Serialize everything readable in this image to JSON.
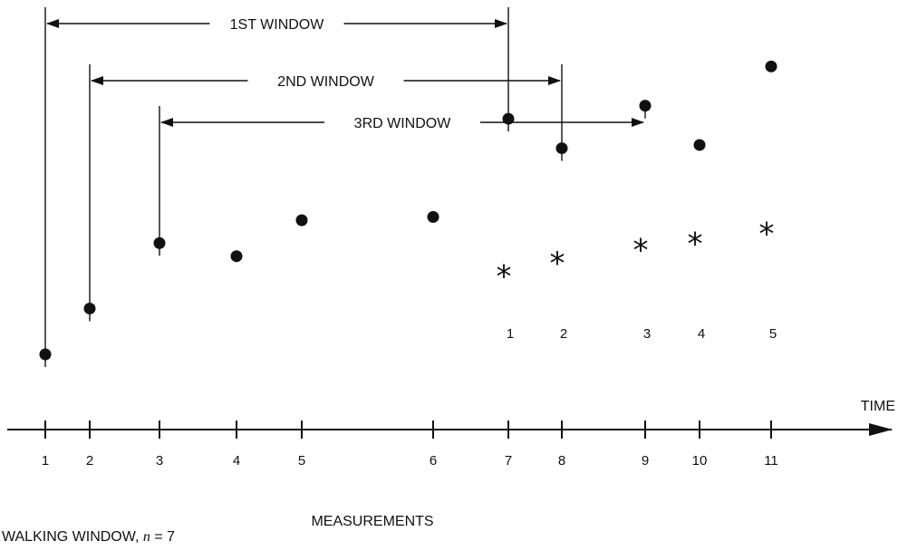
{
  "windows": [
    {
      "label": "1ST WINDOW",
      "start": 1,
      "end": 7
    },
    {
      "label": "2ND WINDOW",
      "start": 2,
      "end": 8
    },
    {
      "label": "3RD WINDOW",
      "start": 3,
      "end": 9
    }
  ],
  "time_axis": {
    "label": "TIME",
    "ticks": [
      "1",
      "2",
      "3",
      "4",
      "5",
      "6",
      "7",
      "8",
      "9",
      "10",
      "11"
    ]
  },
  "measurements": [
    {
      "t": 1,
      "level": 0.0
    },
    {
      "t": 2,
      "level": 0.14
    },
    {
      "t": 3,
      "level": 0.34
    },
    {
      "t": 4,
      "level": 0.3
    },
    {
      "t": 5,
      "level": 0.41
    },
    {
      "t": 6,
      "level": 0.42
    },
    {
      "t": 7,
      "level": 0.72
    },
    {
      "t": 8,
      "level": 0.63
    },
    {
      "t": 9,
      "level": 0.76
    },
    {
      "t": 10,
      "level": 0.64
    },
    {
      "t": 11,
      "level": 0.88
    }
  ],
  "averages": [
    {
      "label": "1",
      "t": 7,
      "level": 0.27
    },
    {
      "label": "2",
      "t": 8,
      "level": 0.31
    },
    {
      "label": "3",
      "t": 9,
      "level": 0.35
    },
    {
      "label": "4",
      "t": 10,
      "level": 0.37
    },
    {
      "label": "5",
      "t": 11,
      "level": 0.4
    }
  ],
  "xlabel": "MEASUREMENTS",
  "footer": {
    "prefix": "WALKING WINDOW,",
    "var": "n",
    "suffix": "= 7"
  }
}
